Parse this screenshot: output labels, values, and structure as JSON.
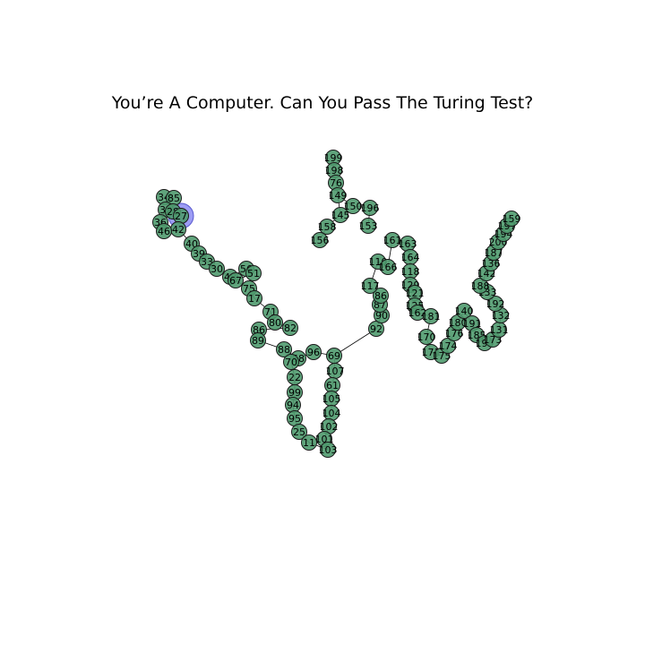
{
  "title": "You’re A Computer. Can You Pass The Turing Test?",
  "colors": {
    "node": "#4f9a6e",
    "highlight": "#7b7bf0",
    "stroke": "#1a1a1a",
    "edge": "#000000"
  },
  "nodes": [
    {
      "id": "199",
      "label": "199"
    },
    {
      "id": "198",
      "label": "198"
    },
    {
      "id": "76",
      "label": "76"
    },
    {
      "id": "149",
      "label": "149"
    },
    {
      "id": "150",
      "label": "150"
    },
    {
      "id": "196",
      "label": "196"
    },
    {
      "id": "145",
      "label": "145"
    },
    {
      "id": "153",
      "label": "153"
    },
    {
      "id": "158",
      "label": "158"
    },
    {
      "id": "156",
      "label": "156"
    },
    {
      "id": "34",
      "label": "34"
    },
    {
      "id": "85",
      "label": "85"
    },
    {
      "id": "32",
      "label": "32"
    },
    {
      "id": "28",
      "label": "28"
    },
    {
      "id": "27",
      "label": "27"
    },
    {
      "id": "36",
      "label": "36"
    },
    {
      "id": "42",
      "label": "42"
    },
    {
      "id": "46",
      "label": "46"
    },
    {
      "id": "40",
      "label": "40"
    },
    {
      "id": "39",
      "label": "39"
    },
    {
      "id": "33",
      "label": "33"
    },
    {
      "id": "30",
      "label": "30"
    },
    {
      "id": "48",
      "label": "48"
    },
    {
      "id": "56",
      "label": "56"
    },
    {
      "id": "51",
      "label": "51"
    },
    {
      "id": "67",
      "label": "67"
    },
    {
      "id": "75",
      "label": "75"
    },
    {
      "id": "17",
      "label": "17"
    },
    {
      "id": "71",
      "label": "71"
    },
    {
      "id": "80",
      "label": "80"
    },
    {
      "id": "82",
      "label": "82"
    },
    {
      "id": "86",
      "label": "86"
    },
    {
      "id": "89",
      "label": "89"
    },
    {
      "id": "88",
      "label": "88"
    },
    {
      "id": "58",
      "label": "58"
    },
    {
      "id": "96",
      "label": "96"
    },
    {
      "id": "69",
      "label": "69"
    },
    {
      "id": "107",
      "label": "107"
    },
    {
      "id": "61",
      "label": "61"
    },
    {
      "id": "105",
      "label": "105"
    },
    {
      "id": "104",
      "label": "104"
    },
    {
      "id": "102",
      "label": "102"
    },
    {
      "id": "101",
      "label": "101"
    },
    {
      "id": "103",
      "label": "103"
    },
    {
      "id": "70",
      "label": "70"
    },
    {
      "id": "22",
      "label": "22"
    },
    {
      "id": "99",
      "label": "99"
    },
    {
      "id": "94",
      "label": "94"
    },
    {
      "id": "95",
      "label": "95"
    },
    {
      "id": "25",
      "label": "25"
    },
    {
      "id": "11",
      "label": "11"
    },
    {
      "id": "92",
      "label": "92"
    },
    {
      "id": "90",
      "label": "90"
    },
    {
      "id": "87",
      "label": "87"
    },
    {
      "id": "86b",
      "label": "86"
    },
    {
      "id": "117",
      "label": "117"
    },
    {
      "id": "110",
      "label": "110"
    },
    {
      "id": "166",
      "label": "166"
    },
    {
      "id": "161",
      "label": "161"
    },
    {
      "id": "163",
      "label": "163"
    },
    {
      "id": "164",
      "label": "164"
    },
    {
      "id": "118",
      "label": "118"
    },
    {
      "id": "129",
      "label": "129"
    },
    {
      "id": "121",
      "label": "121"
    },
    {
      "id": "125",
      "label": "125"
    },
    {
      "id": "162",
      "label": "162"
    },
    {
      "id": "181",
      "label": "181"
    },
    {
      "id": "170",
      "label": "170"
    },
    {
      "id": "171",
      "label": "171"
    },
    {
      "id": "175",
      "label": "175"
    },
    {
      "id": "174",
      "label": "174"
    },
    {
      "id": "176",
      "label": "176"
    },
    {
      "id": "180",
      "label": "180"
    },
    {
      "id": "140",
      "label": "140"
    },
    {
      "id": "191",
      "label": "191"
    },
    {
      "id": "185",
      "label": "185"
    },
    {
      "id": "190",
      "label": "190"
    },
    {
      "id": "173",
      "label": "173"
    },
    {
      "id": "131",
      "label": "131"
    },
    {
      "id": "132",
      "label": "132"
    },
    {
      "id": "192",
      "label": "192"
    },
    {
      "id": "133",
      "label": "133"
    },
    {
      "id": "188",
      "label": "188"
    },
    {
      "id": "142",
      "label": "142"
    },
    {
      "id": "136",
      "label": "136"
    },
    {
      "id": "187",
      "label": "187"
    },
    {
      "id": "200",
      "label": "200"
    },
    {
      "id": "194",
      "label": "194"
    },
    {
      "id": "197",
      "label": "197"
    },
    {
      "id": "159",
      "label": "159"
    }
  ],
  "edges": [
    [
      "199",
      "198"
    ],
    [
      "198",
      "76"
    ],
    [
      "76",
      "149"
    ],
    [
      "149",
      "150"
    ],
    [
      "150",
      "196"
    ],
    [
      "196",
      "153"
    ],
    [
      "149",
      "145"
    ],
    [
      "145",
      "158"
    ],
    [
      "158",
      "156"
    ],
    [
      "34",
      "85"
    ],
    [
      "85",
      "32"
    ],
    [
      "32",
      "28"
    ],
    [
      "28",
      "27"
    ],
    [
      "32",
      "36"
    ],
    [
      "36",
      "46"
    ],
    [
      "46",
      "42"
    ],
    [
      "42",
      "40"
    ],
    [
      "40",
      "39"
    ],
    [
      "39",
      "33"
    ],
    [
      "33",
      "30"
    ],
    [
      "30",
      "48"
    ],
    [
      "48",
      "56"
    ],
    [
      "56",
      "51"
    ],
    [
      "51",
      "67"
    ],
    [
      "67",
      "75"
    ],
    [
      "75",
      "17"
    ],
    [
      "17",
      "71"
    ],
    [
      "71",
      "80"
    ],
    [
      "80",
      "82"
    ],
    [
      "82",
      "86"
    ],
    [
      "86",
      "89"
    ],
    [
      "89",
      "88"
    ],
    [
      "88",
      "58"
    ],
    [
      "58",
      "96"
    ],
    [
      "96",
      "69"
    ],
    [
      "69",
      "107"
    ],
    [
      "107",
      "61"
    ],
    [
      "61",
      "105"
    ],
    [
      "105",
      "104"
    ],
    [
      "104",
      "102"
    ],
    [
      "102",
      "101"
    ],
    [
      "101",
      "103"
    ],
    [
      "103",
      "11"
    ],
    [
      "11",
      "25"
    ],
    [
      "25",
      "95"
    ],
    [
      "95",
      "94"
    ],
    [
      "94",
      "99"
    ],
    [
      "99",
      "22"
    ],
    [
      "22",
      "70"
    ],
    [
      "70",
      "58"
    ],
    [
      "69",
      "92"
    ],
    [
      "92",
      "90"
    ],
    [
      "90",
      "87"
    ],
    [
      "87",
      "86b"
    ],
    [
      "86b",
      "117"
    ],
    [
      "117",
      "110"
    ],
    [
      "110",
      "166"
    ],
    [
      "166",
      "161"
    ],
    [
      "161",
      "163"
    ],
    [
      "163",
      "164"
    ],
    [
      "164",
      "118"
    ],
    [
      "118",
      "129"
    ],
    [
      "129",
      "121"
    ],
    [
      "121",
      "125"
    ],
    [
      "125",
      "162"
    ],
    [
      "162",
      "181"
    ],
    [
      "181",
      "170"
    ],
    [
      "170",
      "171"
    ],
    [
      "171",
      "175"
    ],
    [
      "175",
      "174"
    ],
    [
      "174",
      "176"
    ],
    [
      "176",
      "180"
    ],
    [
      "180",
      "140"
    ],
    [
      "140",
      "191"
    ],
    [
      "191",
      "185"
    ],
    [
      "185",
      "190"
    ],
    [
      "190",
      "173"
    ],
    [
      "173",
      "131"
    ],
    [
      "131",
      "132"
    ],
    [
      "132",
      "192"
    ],
    [
      "192",
      "133"
    ],
    [
      "133",
      "188"
    ],
    [
      "188",
      "142"
    ],
    [
      "142",
      "136"
    ],
    [
      "136",
      "187"
    ],
    [
      "187",
      "200"
    ],
    [
      "200",
      "194"
    ],
    [
      "194",
      "197"
    ],
    [
      "197",
      "159"
    ]
  ]
}
